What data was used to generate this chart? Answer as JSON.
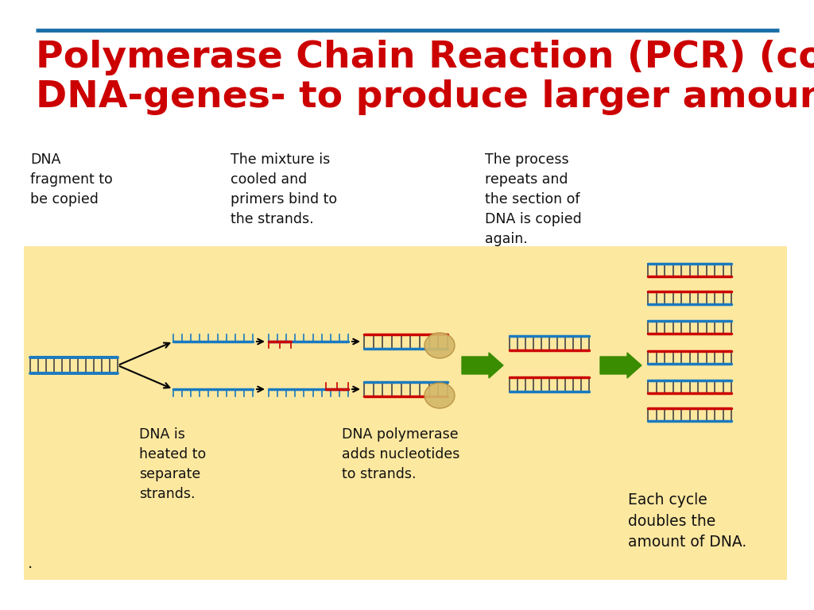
{
  "title_line1": "Polymerase Chain Reaction (PCR) (coping",
  "title_line2": "DNA-genes- to produce larger amounts)",
  "title_color": "#cc0000",
  "title_fontsize": 34,
  "bg_color": "#ffffff",
  "panel_bg": "#fde8a0",
  "header_bar_color": "#1a6fa8",
  "label1_lines": [
    "DNA",
    "fragment to",
    "be copied"
  ],
  "label2_lines": [
    "The mixture is",
    "cooled and",
    "primers bind to",
    "the strands."
  ],
  "label3_lines": [
    "The process",
    "repeats and",
    "the section of",
    "DNA is copied",
    "again."
  ],
  "label4_lines": [
    "DNA is",
    "heated to",
    "separate",
    "strands."
  ],
  "label5_lines": [
    "DNA polymerase",
    "adds nucleotides",
    "to strands."
  ],
  "label6_lines": [
    "Each cycle",
    "doubles the",
    "amount of DNA."
  ],
  "dna_blue": "#1a7abf",
  "dna_red": "#cc0000",
  "arrow_green": "#3a8c00",
  "text_black": "#111111",
  "label_fontsize": 12.5,
  "dot_color": "#c8a84b"
}
